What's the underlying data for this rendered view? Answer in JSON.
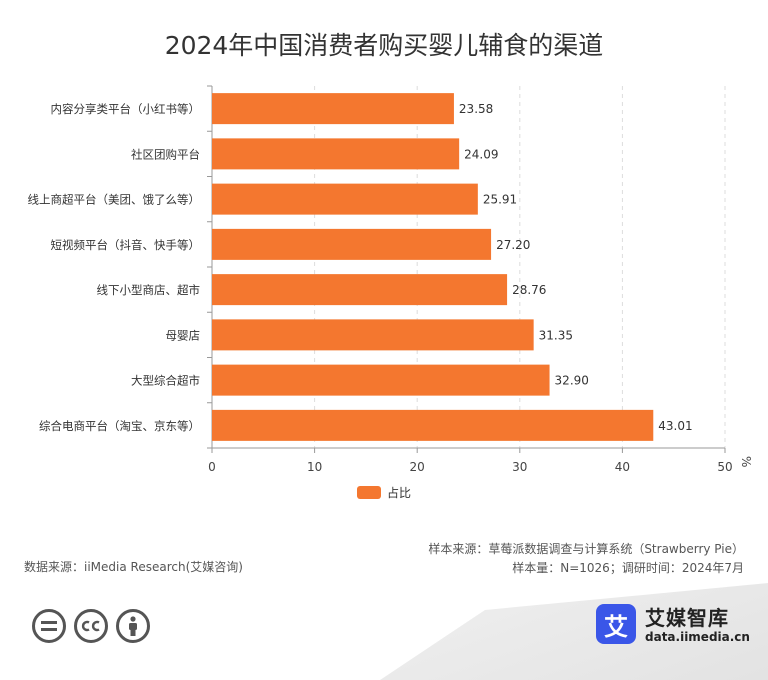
{
  "chart_data": {
    "type": "bar",
    "orientation": "horizontal",
    "title": "2024年中国消费者购买婴儿辅食的渠道",
    "categories": [
      "内容分享类平台（小红书等）",
      "社区团购平台",
      "线上商超平台（美团、饿了么等）",
      "短视频平台（抖音、快手等）",
      "线下小型商店、超市",
      "母婴店",
      "大型综合超市",
      "综合电商平台（淘宝、京东等）"
    ],
    "series": [
      {
        "name": "占比",
        "values": [
          23.58,
          24.09,
          25.91,
          27.2,
          28.76,
          31.35,
          32.9,
          43.01
        ]
      }
    ],
    "value_labels": [
      "23.58",
      "24.09",
      "25.91",
      "27.20",
      "28.76",
      "31.35",
      "32.90",
      "43.01"
    ],
    "xlim": [
      0,
      50
    ],
    "xticks": [
      0,
      10,
      20,
      30,
      40,
      50
    ],
    "xticks_labels": [
      "0",
      "10",
      "20",
      "30",
      "40",
      "50"
    ],
    "xlabel": "%",
    "ylabel": "",
    "grid": true,
    "legend_position": "bottom-center",
    "bar_color": "#f4772f"
  },
  "sources": {
    "data_source": "数据来源：iiMedia Research(艾媒咨询)",
    "sample_source": "样本来源：草莓派数据调查与计算系统（Strawberry Pie）",
    "sample_info": "样本量：N=1026；调研时间：2024年7月"
  },
  "license_icons": [
    "equals-icon",
    "cc-icon",
    "person-icon"
  ],
  "brand": {
    "logo_char": "艾",
    "name": "艾媒智库",
    "domain": "data.iimedia.cn",
    "color": "#3a56e8"
  }
}
